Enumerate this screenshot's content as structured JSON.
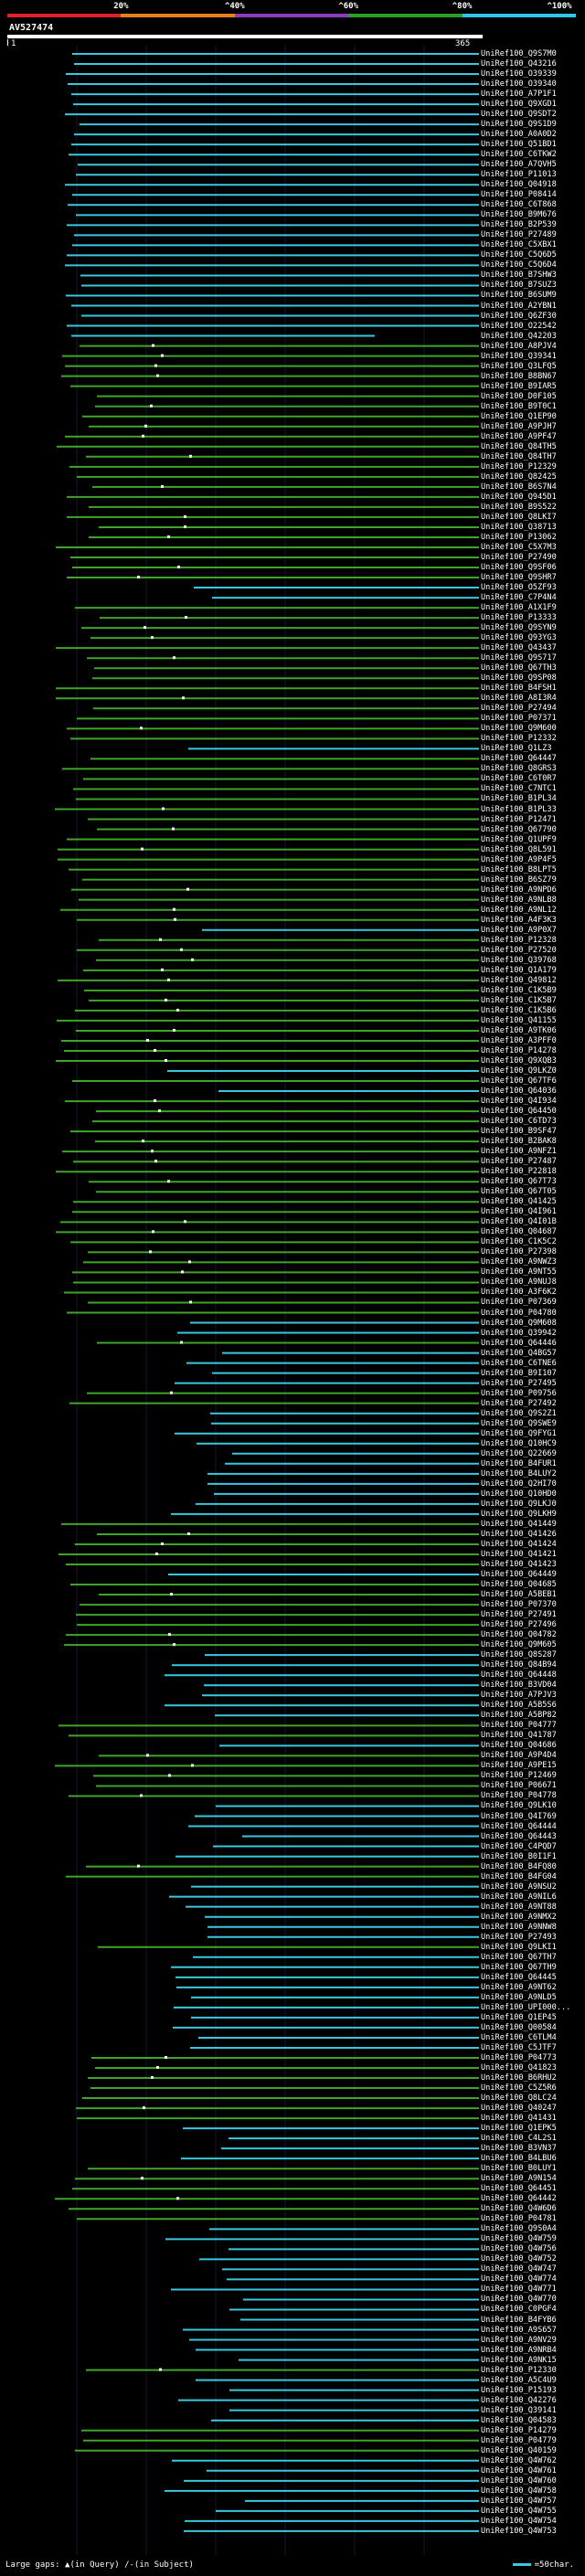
{
  "colors": {
    "background": "#000000",
    "cyan_band": "#38c8e0",
    "green_band": "#3fa52a",
    "bright_green": "#6ce84a",
    "gap_marker": "#ffffff",
    "scale_red": "#e0202a",
    "scale_orange": "#e8801a",
    "scale_purple": "#8c3cc0",
    "scale_green": "#2aa020",
    "scale_cyan": "#30c8e8"
  },
  "scale": {
    "labels": [
      "20%",
      "^40%",
      "^60%",
      "^80%",
      "^100%"
    ],
    "segments": [
      "red",
      "orange",
      "purple",
      "green",
      "cyan"
    ]
  },
  "query": {
    "id": "AV527474",
    "start": "1",
    "end": "365"
  },
  "legend": {
    "large_gaps": "Large gaps:",
    "query_gap": "(in Query)",
    "subject_gap": "(in Subject)",
    "key_label": "=50char."
  },
  "hits": [
    {
      "name": "UniRef100_Q9S7M0",
      "type": "cyan"
    },
    {
      "name": "UniRef100_Q43216",
      "type": "cyan"
    },
    {
      "name": "UniRef100_O39339",
      "type": "cyan"
    },
    {
      "name": "UniRef100_O39340",
      "type": "cyan"
    },
    {
      "name": "UniRef100_A7P1F1",
      "type": "cyan"
    },
    {
      "name": "UniRef100_Q9XGD1",
      "type": "cyan"
    },
    {
      "name": "UniRef100_Q9SDT2",
      "type": "cyan"
    },
    {
      "name": "UniRef100_Q9S1D9",
      "type": "cyan"
    },
    {
      "name": "UniRef100_A0A0D2",
      "type": "cyan"
    },
    {
      "name": "UniRef100_Q51BD1",
      "type": "cyan"
    },
    {
      "name": "UniRef100_C6TKW2",
      "type": "cyan"
    },
    {
      "name": "UniRef100_A7QVH5",
      "type": "cyan"
    },
    {
      "name": "UniRef100_P11013",
      "type": "cyan"
    },
    {
      "name": "UniRef100_Q04918",
      "type": "cyan"
    },
    {
      "name": "UniRef100_P08414",
      "type": "cyan"
    },
    {
      "name": "UniRef100_C6T868",
      "type": "cyan"
    },
    {
      "name": "UniRef100_B9M676",
      "type": "cyan"
    },
    {
      "name": "UniRef100_B2P539",
      "type": "cyan"
    },
    {
      "name": "UniRef100_P27489",
      "type": "cyan"
    },
    {
      "name": "UniRef100_C5XBX1",
      "type": "cyan"
    },
    {
      "name": "UniRef100_C5Q6D5",
      "type": "cyan"
    },
    {
      "name": "UniRef100_C5Q6D4",
      "type": "cyan"
    },
    {
      "name": "UniRef100_B7SHW3",
      "type": "cyan"
    },
    {
      "name": "UniRef100_B7SUZ3",
      "type": "cyan"
    },
    {
      "name": "UniRef100_B6SUM9",
      "type": "cyan"
    },
    {
      "name": "UniRef100_A2YBN1",
      "type": "cyan"
    },
    {
      "name": "UniRef100_Q6ZF30",
      "type": "cyan"
    },
    {
      "name": "UniRef100_O22542",
      "type": "cyan"
    },
    {
      "name": "UniRef100_Q42203",
      "type": "cyan"
    },
    {
      "name": "UniRef100_A8PJV4",
      "type": "green"
    },
    {
      "name": "UniRef100_Q39341",
      "type": "green"
    },
    {
      "name": "UniRef100_Q3LFQ5",
      "type": "green"
    },
    {
      "name": "UniRef100_B8BN67",
      "type": "green"
    },
    {
      "name": "UniRef100_B9IAR5",
      "type": "green"
    },
    {
      "name": "UniRef100_D0F105",
      "type": "green"
    },
    {
      "name": "UniRef100_B9T0C1",
      "type": "green"
    },
    {
      "name": "UniRef100_Q1EP90",
      "type": "green"
    },
    {
      "name": "UniRef100_A9PJH7",
      "type": "green"
    },
    {
      "name": "UniRef100_A9PF47",
      "type": "green"
    },
    {
      "name": "UniRef100_Q84TH5",
      "type": "green"
    },
    {
      "name": "UniRef100_Q84TH7",
      "type": "green"
    },
    {
      "name": "UniRef100_P12329",
      "type": "green"
    },
    {
      "name": "UniRef100_Q82425",
      "type": "green"
    },
    {
      "name": "UniRef100_B6S7N4",
      "type": "green"
    },
    {
      "name": "UniRef100_Q945D1",
      "type": "green"
    },
    {
      "name": "UniRef100_B9S522",
      "type": "green"
    },
    {
      "name": "UniRef100_Q8LKI7",
      "type": "green"
    },
    {
      "name": "UniRef100_Q38713",
      "type": "green"
    },
    {
      "name": "UniRef100_P13062",
      "type": "green"
    },
    {
      "name": "UniRef100_C5X7M3",
      "type": "green"
    },
    {
      "name": "UniRef100_P27490",
      "type": "green"
    },
    {
      "name": "UniRef100_Q9SF06",
      "type": "green"
    },
    {
      "name": "UniRef100_Q9SHR7",
      "type": "green"
    },
    {
      "name": "UniRef100_O5ZF93",
      "type": "cyan"
    },
    {
      "name": "UniRef100_C7P4N4",
      "type": "cyan"
    },
    {
      "name": "UniRef100_A1X1F9",
      "type": "green"
    },
    {
      "name": "UniRef100_P13333",
      "type": "green"
    },
    {
      "name": "UniRef100_Q9SYN9",
      "type": "green"
    },
    {
      "name": "UniRef100_Q93YG3",
      "type": "green"
    },
    {
      "name": "UniRef100_Q43437",
      "type": "green"
    },
    {
      "name": "UniRef100_Q9S717",
      "type": "green"
    },
    {
      "name": "UniRef100_Q67TH3",
      "type": "green"
    },
    {
      "name": "UniRef100_Q9SP08",
      "type": "green"
    },
    {
      "name": "UniRef100_B4FSH1",
      "type": "green"
    },
    {
      "name": "UniRef100_A8I3R4",
      "type": "green"
    },
    {
      "name": "UniRef100_P27494",
      "type": "green"
    },
    {
      "name": "UniRef100_P07371",
      "type": "green"
    },
    {
      "name": "UniRef100_Q9M600",
      "type": "green"
    },
    {
      "name": "UniRef100_P12332",
      "type": "green"
    },
    {
      "name": "UniRef100_Q1LZ3",
      "type": "cyan"
    },
    {
      "name": "UniRef100_Q64447",
      "type": "green"
    },
    {
      "name": "UniRef100_Q8GRS3",
      "type": "green"
    },
    {
      "name": "UniRef100_C6T0R7",
      "type": "green"
    },
    {
      "name": "UniRef100_C7NTC1",
      "type": "green"
    },
    {
      "name": "UniRef100_B1PL34",
      "type": "green"
    },
    {
      "name": "UniRef100_B1PL33",
      "type": "green"
    },
    {
      "name": "UniRef100_P12471",
      "type": "green"
    },
    {
      "name": "UniRef100_Q67790",
      "type": "green"
    },
    {
      "name": "UniRef100_Q1UPF9",
      "type": "green"
    },
    {
      "name": "UniRef100_Q8L591",
      "type": "green"
    },
    {
      "name": "UniRef100_A9P4F5",
      "type": "green"
    },
    {
      "name": "UniRef100_B8LPT5",
      "type": "green"
    },
    {
      "name": "UniRef100_B6SZ79",
      "type": "green"
    },
    {
      "name": "UniRef100_A9NPD6",
      "type": "green"
    },
    {
      "name": "UniRef100_A9NLB8",
      "type": "green"
    },
    {
      "name": "UniRef100_A9NL12",
      "type": "green"
    },
    {
      "name": "UniRef100_A4F3K3",
      "type": "green"
    },
    {
      "name": "UniRef100_A9P0X7",
      "type": "cyan"
    },
    {
      "name": "UniRef100_P12328",
      "type": "green"
    },
    {
      "name": "UniRef100_P27520",
      "type": "green"
    },
    {
      "name": "UniRef100_Q39768",
      "type": "green"
    },
    {
      "name": "UniRef100_Q1A179",
      "type": "green"
    },
    {
      "name": "UniRef100_Q49812",
      "type": "green"
    },
    {
      "name": "UniRef100_C1K5B9",
      "type": "green"
    },
    {
      "name": "UniRef100_C1K5B7",
      "type": "green"
    },
    {
      "name": "UniRef100_C1K5B6",
      "type": "green"
    },
    {
      "name": "UniRef100_Q41155",
      "type": "green"
    },
    {
      "name": "UniRef100_A9TK06",
      "type": "green"
    },
    {
      "name": "UniRef100_A3PFF0",
      "type": "green"
    },
    {
      "name": "UniRef100_P14278",
      "type": "green"
    },
    {
      "name": "UniRef100_Q9XQB3",
      "type": "green"
    },
    {
      "name": "UniRef100_Q9LKZ0",
      "type": "cyan"
    },
    {
      "name": "UniRef100_Q67TF6",
      "type": "green"
    },
    {
      "name": "UniRef100_Q64036",
      "type": "cyan"
    },
    {
      "name": "UniRef100_Q4I934",
      "type": "green"
    },
    {
      "name": "UniRef100_Q64450",
      "type": "green"
    },
    {
      "name": "UniRef100_C6TD73",
      "type": "green"
    },
    {
      "name": "UniRef100_B9SF47",
      "type": "green"
    },
    {
      "name": "UniRef100_B2BAK8",
      "type": "green"
    },
    {
      "name": "UniRef100_A9NFZ1",
      "type": "green"
    },
    {
      "name": "UniRef100_P27487",
      "type": "green"
    },
    {
      "name": "UniRef100_P22818",
      "type": "green"
    },
    {
      "name": "UniRef100_Q67T73",
      "type": "green"
    },
    {
      "name": "UniRef100_Q67T05",
      "type": "green"
    },
    {
      "name": "UniRef100_Q41425",
      "type": "green"
    },
    {
      "name": "UniRef100_Q4I961",
      "type": "green"
    },
    {
      "name": "UniRef100_Q4I01B",
      "type": "green"
    },
    {
      "name": "UniRef100_Q04687",
      "type": "green"
    },
    {
      "name": "UniRef100_C1K5C2",
      "type": "green"
    },
    {
      "name": "UniRef100_P27398",
      "type": "green"
    },
    {
      "name": "UniRef100_A9NWZ3",
      "type": "green"
    },
    {
      "name": "UniRef100_A9NT55",
      "type": "green"
    },
    {
      "name": "UniRef100_A9NUJ8",
      "type": "green"
    },
    {
      "name": "UniRef100_A3F6K2",
      "type": "green"
    },
    {
      "name": "UniRef100_P07369",
      "type": "green"
    },
    {
      "name": "UniRef100_P04780",
      "type": "green"
    },
    {
      "name": "UniRef100_Q9M608",
      "type": "cyan"
    },
    {
      "name": "UniRef100_Q39942",
      "type": "cyan"
    },
    {
      "name": "UniRef100_Q64446",
      "type": "green"
    },
    {
      "name": "UniRef100_Q4BG57",
      "type": "cyan"
    },
    {
      "name": "UniRef100_C6TNE6",
      "type": "cyan"
    },
    {
      "name": "UniRef100_B9I107",
      "type": "cyan"
    },
    {
      "name": "UniRef100_P27495",
      "type": "cyan"
    },
    {
      "name": "UniRef100_P09756",
      "type": "green"
    },
    {
      "name": "UniRef100_P27492",
      "type": "green"
    },
    {
      "name": "UniRef100_Q9S2Z1",
      "type": "cyan"
    },
    {
      "name": "UniRef100_Q9SWE9",
      "type": "cyan"
    },
    {
      "name": "UniRef100_Q9FYG1",
      "type": "cyan"
    },
    {
      "name": "UniRef100_Q10HC9",
      "type": "cyan"
    },
    {
      "name": "UniRef100_Q22669",
      "type": "cyan"
    },
    {
      "name": "UniRef100_B4FUR1",
      "type": "cyan"
    },
    {
      "name": "UniRef100_B4LUY2",
      "type": "cyan"
    },
    {
      "name": "UniRef100_Q2HI70",
      "type": "cyan"
    },
    {
      "name": "UniRef100_Q10HD0",
      "type": "cyan"
    },
    {
      "name": "UniRef100_Q9LKJ0",
      "type": "cyan"
    },
    {
      "name": "UniRef100_Q9LKH9",
      "type": "cyan"
    },
    {
      "name": "UniRef100_Q41449",
      "type": "green"
    },
    {
      "name": "UniRef100_Q41426",
      "type": "green"
    },
    {
      "name": "UniRef100_Q41424",
      "type": "green"
    },
    {
      "name": "UniRef100_Q41421",
      "type": "green"
    },
    {
      "name": "UniRef100_Q41423",
      "type": "green"
    },
    {
      "name": "UniRef100_Q64449",
      "type": "cyan"
    },
    {
      "name": "UniRef100_Q04685",
      "type": "green"
    },
    {
      "name": "UniRef100_A5BEB1",
      "type": "green"
    },
    {
      "name": "UniRef100_P07370",
      "type": "green"
    },
    {
      "name": "UniRef100_P27491",
      "type": "green"
    },
    {
      "name": "UniRef100_P27496",
      "type": "green"
    },
    {
      "name": "UniRef100_Q04782",
      "type": "green"
    },
    {
      "name": "UniRef100_Q9M605",
      "type": "green"
    },
    {
      "name": "UniRef100_Q8S287",
      "type": "cyan"
    },
    {
      "name": "UniRef100_Q84B94",
      "type": "cyan"
    },
    {
      "name": "UniRef100_Q64448",
      "type": "cyan"
    },
    {
      "name": "UniRef100_B3VD04",
      "type": "cyan"
    },
    {
      "name": "UniRef100_A7PJV3",
      "type": "cyan"
    },
    {
      "name": "UniRef100_A5B5S6",
      "type": "cyan"
    },
    {
      "name": "UniRef100_A5BP82",
      "type": "cyan"
    },
    {
      "name": "UniRef100_P04777",
      "type": "green"
    },
    {
      "name": "UniRef100_Q41787",
      "type": "green"
    },
    {
      "name": "UniRef100_Q04686",
      "type": "cyan"
    },
    {
      "name": "UniRef100_A9P4D4",
      "type": "green"
    },
    {
      "name": "UniRef100_A9PE15",
      "type": "green"
    },
    {
      "name": "UniRef100_P12469",
      "type": "green"
    },
    {
      "name": "UniRef100_P06671",
      "type": "green"
    },
    {
      "name": "UniRef100_P04778",
      "type": "green"
    },
    {
      "name": "UniRef100_Q9LK10",
      "type": "cyan"
    },
    {
      "name": "UniRef100_Q4I769",
      "type": "cyan"
    },
    {
      "name": "UniRef100_Q64444",
      "type": "cyan"
    },
    {
      "name": "UniRef100_Q64443",
      "type": "cyan"
    },
    {
      "name": "UniRef100_C4PQD7",
      "type": "cyan"
    },
    {
      "name": "UniRef100_B0I1F1",
      "type": "cyan"
    },
    {
      "name": "UniRef100_B4FQ80",
      "type": "green"
    },
    {
      "name": "UniRef100_B4FG04",
      "type": "green"
    },
    {
      "name": "UniRef100_A9NSU2",
      "type": "cyan"
    },
    {
      "name": "UniRef100_A9NIL6",
      "type": "cyan"
    },
    {
      "name": "UniRef100_A9NT88",
      "type": "cyan"
    },
    {
      "name": "UniRef100_A9NMX2",
      "type": "cyan"
    },
    {
      "name": "UniRef100_A9NNW8",
      "type": "cyan"
    },
    {
      "name": "UniRef100_P27493",
      "type": "cyan"
    },
    {
      "name": "UniRef100_Q9LKI1",
      "type": "green"
    },
    {
      "name": "UniRef100_Q67TH7",
      "type": "cyan"
    },
    {
      "name": "UniRef100_Q67TH9",
      "type": "cyan"
    },
    {
      "name": "UniRef100_Q64445",
      "type": "cyan"
    },
    {
      "name": "UniRef100_A9NT62",
      "type": "cyan"
    },
    {
      "name": "UniRef100_A9NLD5",
      "type": "cyan"
    },
    {
      "name": "UniRef100_UPI000...",
      "type": "cyan"
    },
    {
      "name": "UniRef100_Q1EP45",
      "type": "cyan"
    },
    {
      "name": "UniRef100_Q00584",
      "type": "cyan"
    },
    {
      "name": "UniRef100_C6TLM4",
      "type": "cyan"
    },
    {
      "name": "UniRef100_C5JTF7",
      "type": "cyan"
    },
    {
      "name": "UniRef100_P04773",
      "type": "green"
    },
    {
      "name": "UniRef100_Q41823",
      "type": "green"
    },
    {
      "name": "UniRef100_B6RHU2",
      "type": "green"
    },
    {
      "name": "UniRef100_C5Z5R6",
      "type": "green"
    },
    {
      "name": "UniRef100_Q8LC24",
      "type": "green"
    },
    {
      "name": "UniRef100_Q40247",
      "type": "green"
    },
    {
      "name": "UniRef100_Q41431",
      "type": "green"
    },
    {
      "name": "UniRef100_Q1EPK5",
      "type": "cyan"
    },
    {
      "name": "UniRef100_C4L2S1",
      "type": "cyan"
    },
    {
      "name": "UniRef100_B3VN37",
      "type": "cyan"
    },
    {
      "name": "UniRef100_B4LBU6",
      "type": "cyan"
    },
    {
      "name": "UniRef100_B0LUY1",
      "type": "green"
    },
    {
      "name": "UniRef100_A9N154",
      "type": "green"
    },
    {
      "name": "UniRef100_Q64451",
      "type": "green"
    },
    {
      "name": "UniRef100_Q64442",
      "type": "green"
    },
    {
      "name": "UniRef100_Q4W6D6",
      "type": "green"
    },
    {
      "name": "UniRef100_P04781",
      "type": "green"
    },
    {
      "name": "UniRef100_Q9S0A4",
      "type": "cyan"
    },
    {
      "name": "UniRef100_Q4W759",
      "type": "cyan"
    },
    {
      "name": "UniRef100_Q4W756",
      "type": "cyan"
    },
    {
      "name": "UniRef100_Q4W752",
      "type": "cyan"
    },
    {
      "name": "UniRef100_Q4W747",
      "type": "cyan"
    },
    {
      "name": "UniRef100_Q4W774",
      "type": "cyan"
    },
    {
      "name": "UniRef100_Q4W771",
      "type": "cyan"
    },
    {
      "name": "UniRef100_Q4W770",
      "type": "cyan"
    },
    {
      "name": "UniRef100_C0PGF4",
      "type": "cyan"
    },
    {
      "name": "UniRef100_B4FYB6",
      "type": "cyan"
    },
    {
      "name": "UniRef100_A9S657",
      "type": "cyan"
    },
    {
      "name": "UniRef100_A9NV29",
      "type": "cyan"
    },
    {
      "name": "UniRef100_A9NRB4",
      "type": "cyan"
    },
    {
      "name": "UniRef100_A9NK15",
      "type": "cyan"
    },
    {
      "name": "UniRef100_P12330",
      "type": "green"
    },
    {
      "name": "UniRef100_A5C4U9",
      "type": "cyan"
    },
    {
      "name": "UniRef100_P15193",
      "type": "cyan"
    },
    {
      "name": "UniRef100_Q42276",
      "type": "cyan"
    },
    {
      "name": "UniRef100_Q39141",
      "type": "cyan"
    },
    {
      "name": "UniRef100_Q04583",
      "type": "cyan"
    },
    {
      "name": "UniRef100_P14279",
      "type": "green"
    },
    {
      "name": "UniRef100_P04779",
      "type": "green"
    },
    {
      "name": "UniRef100_Q40159",
      "type": "green"
    },
    {
      "name": "UniRef100_Q4W762",
      "type": "cyan"
    },
    {
      "name": "UniRef100_Q4W761",
      "type": "cyan"
    },
    {
      "name": "UniRef100_Q4W760",
      "type": "cyan"
    },
    {
      "name": "UniRef100_Q4W758",
      "type": "cyan"
    },
    {
      "name": "UniRef100_Q4W757",
      "type": "cyan"
    },
    {
      "name": "UniRef100_Q4W755",
      "type": "cyan"
    },
    {
      "name": "UniRef100_Q4W754",
      "type": "cyan"
    },
    {
      "name": "UniRef100_Q4W753",
      "type": "cyan"
    }
  ]
}
